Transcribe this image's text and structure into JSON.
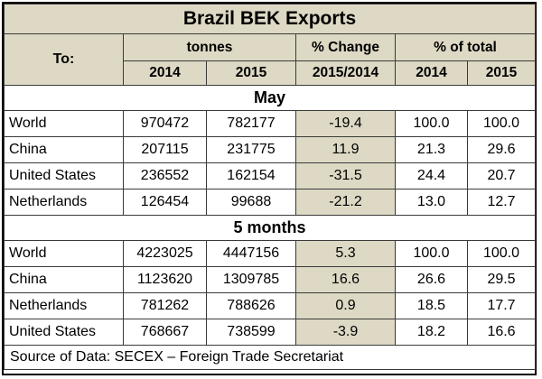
{
  "title": "Brazil BEK Exports",
  "header": {
    "to_label": "To:",
    "tonnes_label": "tonnes",
    "change_label": "% Change",
    "total_label": "% of total",
    "year_2014": "2014",
    "year_2015": "2015",
    "change_years": "2015/2014",
    "total_2014": "2014",
    "total_2015": "2015"
  },
  "sections": [
    {
      "label": "May",
      "rows": [
        {
          "country": "World",
          "t2014": "970472",
          "t2015": "782177",
          "change": "-19.4",
          "p2014": "100.0",
          "p2015": "100.0"
        },
        {
          "country": "China",
          "t2014": "207115",
          "t2015": "231775",
          "change": "11.9",
          "p2014": "21.3",
          "p2015": "29.6"
        },
        {
          "country": "United States",
          "t2014": "236552",
          "t2015": "162154",
          "change": "-31.5",
          "p2014": "24.4",
          "p2015": "20.7"
        },
        {
          "country": "Netherlands",
          "t2014": "126454",
          "t2015": "99688",
          "change": "-21.2",
          "p2014": "13.0",
          "p2015": "12.7"
        }
      ]
    },
    {
      "label": "5 months",
      "rows": [
        {
          "country": "World",
          "t2014": "4223025",
          "t2015": "4447156",
          "change": "5.3",
          "p2014": "100.0",
          "p2015": "100.0"
        },
        {
          "country": "China",
          "t2014": "1123620",
          "t2015": "1309785",
          "change": "16.6",
          "p2014": "26.6",
          "p2015": "29.5"
        },
        {
          "country": "Netherlands",
          "t2014": "781262",
          "t2015": "788626",
          "change": "0.9",
          "p2014": "18.5",
          "p2015": "17.7"
        },
        {
          "country": "United States",
          "t2014": "768667",
          "t2015": "738599",
          "change": "-3.9",
          "p2014": "18.2",
          "p2015": "16.6"
        }
      ]
    }
  ],
  "source": "Source of Data: SECEX – Foreign Trade Secretariat",
  "colors": {
    "header_fill": "#ddd9c4",
    "border": "#3a3a3a"
  }
}
